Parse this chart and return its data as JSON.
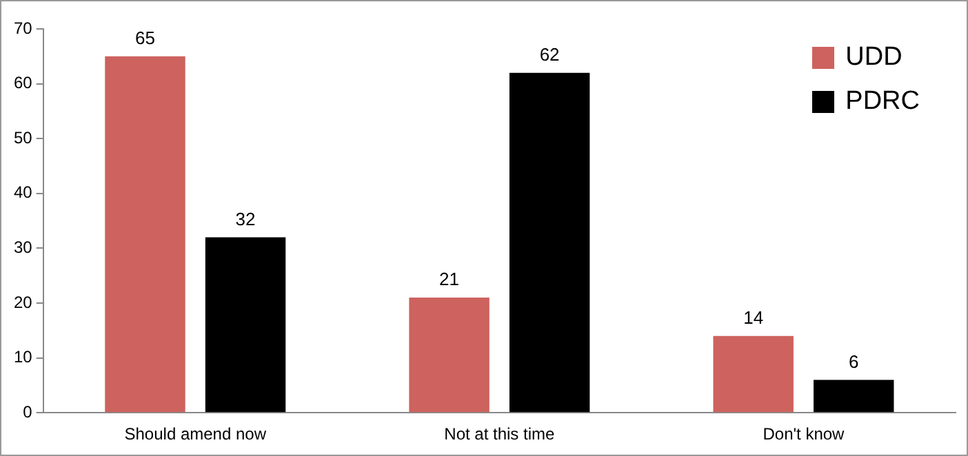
{
  "chart_data": {
    "type": "bar",
    "categories": [
      "Should amend now",
      "Not at this time",
      "Don't know"
    ],
    "series": [
      {
        "name": "UDD",
        "color": "#cd625e",
        "values": [
          65,
          21,
          14
        ]
      },
      {
        "name": "PDRC",
        "color": "#000000",
        "values": [
          32,
          62,
          6
        ]
      }
    ],
    "ylim": [
      0,
      70
    ],
    "yticks": [
      0,
      10,
      20,
      30,
      40,
      50,
      60,
      70
    ],
    "grid": false,
    "legend": "top right",
    "data_labels": true
  }
}
